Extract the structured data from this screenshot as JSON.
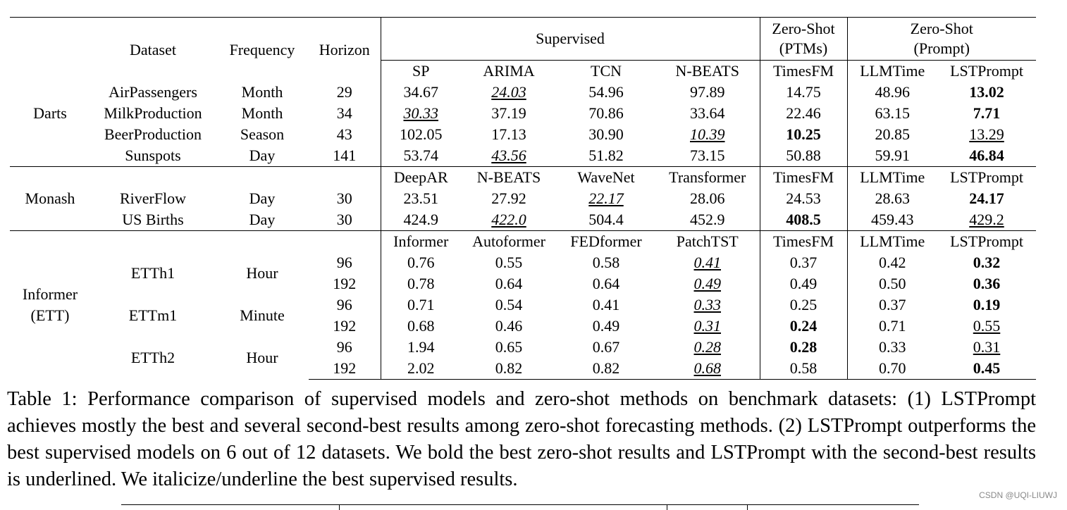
{
  "table": {
    "header": {
      "dataset": "Dataset",
      "frequency": "Frequency",
      "horizon": "Horizon",
      "supervised": "Supervised",
      "zs_ptm_l1": "Zero-Shot",
      "zs_ptm_l2": "(PTMs)",
      "zs_prompt_l1": "Zero-Shot",
      "zs_prompt_l2": "(Prompt)"
    },
    "sections": [
      {
        "group": [
          "Darts"
        ],
        "models": [
          "SP",
          "ARIMA",
          "TCN",
          "N-BEATS",
          "TimesFM",
          "LLMTime",
          "LSTPrompt"
        ],
        "rows": [
          {
            "dataset": "AirPassengers",
            "frequency": "Month",
            "horizon": "29",
            "values": [
              {
                "v": "34.67"
              },
              {
                "v": "24.03",
                "s": "iu"
              },
              {
                "v": "54.96"
              },
              {
                "v": "97.89"
              },
              {
                "v": "14.75"
              },
              {
                "v": "48.96"
              },
              {
                "v": "13.02",
                "s": "b"
              }
            ]
          },
          {
            "dataset": "MilkProduction",
            "frequency": "Month",
            "horizon": "34",
            "values": [
              {
                "v": "30.33",
                "s": "iu"
              },
              {
                "v": "37.19"
              },
              {
                "v": "70.86"
              },
              {
                "v": "33.64"
              },
              {
                "v": "22.46"
              },
              {
                "v": "63.15"
              },
              {
                "v": "7.71",
                "s": "b"
              }
            ]
          },
          {
            "dataset": "BeerProduction",
            "frequency": "Season",
            "horizon": "43",
            "values": [
              {
                "v": "102.05"
              },
              {
                "v": "17.13"
              },
              {
                "v": "30.90"
              },
              {
                "v": "10.39",
                "s": "iu"
              },
              {
                "v": "10.25",
                "s": "b"
              },
              {
                "v": "20.85"
              },
              {
                "v": "13.29",
                "s": "u"
              }
            ]
          },
          {
            "dataset": "Sunspots",
            "frequency": "Day",
            "horizon": "141",
            "values": [
              {
                "v": "53.74"
              },
              {
                "v": "43.56",
                "s": "iu"
              },
              {
                "v": "51.82"
              },
              {
                "v": "73.15"
              },
              {
                "v": "50.88"
              },
              {
                "v": "59.91"
              },
              {
                "v": "46.84",
                "s": "b"
              }
            ]
          }
        ]
      },
      {
        "group": [
          "Monash"
        ],
        "models": [
          "DeepAR",
          "N-BEATS",
          "WaveNet",
          "Transformer",
          "TimesFM",
          "LLMTime",
          "LSTPrompt"
        ],
        "rows": [
          {
            "dataset": "RiverFlow",
            "frequency": "Day",
            "horizon": "30",
            "values": [
              {
                "v": "23.51"
              },
              {
                "v": "27.92"
              },
              {
                "v": "22.17",
                "s": "iu"
              },
              {
                "v": "28.06"
              },
              {
                "v": "24.53"
              },
              {
                "v": "28.63"
              },
              {
                "v": "24.17",
                "s": "b"
              }
            ]
          },
          {
            "dataset": "US Births",
            "frequency": "Day",
            "horizon": "30",
            "values": [
              {
                "v": "424.9"
              },
              {
                "v": "422.0",
                "s": "iu"
              },
              {
                "v": "504.4"
              },
              {
                "v": "452.9"
              },
              {
                "v": "408.5",
                "s": "b"
              },
              {
                "v": "459.43"
              },
              {
                "v": "429.2",
                "s": "u"
              }
            ]
          }
        ]
      },
      {
        "group": [
          "Informer",
          "(ETT)"
        ],
        "models": [
          "Informer",
          "Autoformer",
          "FEDformer",
          "PatchTST",
          "TimesFM",
          "LLMTime",
          "LSTPrompt"
        ],
        "rows": [
          {
            "dataset": "ETTh1",
            "frequency": "Hour",
            "horizon": "96",
            "values": [
              {
                "v": "0.76"
              },
              {
                "v": "0.55"
              },
              {
                "v": "0.58"
              },
              {
                "v": "0.41",
                "s": "iu"
              },
              {
                "v": "0.37"
              },
              {
                "v": "0.42"
              },
              {
                "v": "0.32",
                "s": "b"
              }
            ]
          },
          {
            "dataset": "",
            "frequency": "",
            "horizon": "192",
            "values": [
              {
                "v": "0.78"
              },
              {
                "v": "0.64"
              },
              {
                "v": "0.64"
              },
              {
                "v": "0.49",
                "s": "iu"
              },
              {
                "v": "0.49"
              },
              {
                "v": "0.50"
              },
              {
                "v": "0.36",
                "s": "b"
              }
            ]
          },
          {
            "dataset": "ETTm1",
            "frequency": "Minute",
            "horizon": "96",
            "values": [
              {
                "v": "0.71"
              },
              {
                "v": "0.54"
              },
              {
                "v": "0.41"
              },
              {
                "v": "0.33",
                "s": "iu"
              },
              {
                "v": "0.25"
              },
              {
                "v": "0.37"
              },
              {
                "v": "0.19",
                "s": "b"
              }
            ]
          },
          {
            "dataset": "",
            "frequency": "",
            "horizon": "192",
            "values": [
              {
                "v": "0.68"
              },
              {
                "v": "0.46"
              },
              {
                "v": "0.49"
              },
              {
                "v": "0.31",
                "s": "iu"
              },
              {
                "v": "0.24",
                "s": "b"
              },
              {
                "v": "0.71"
              },
              {
                "v": "0.55",
                "s": "u"
              }
            ]
          },
          {
            "dataset": "ETTh2",
            "frequency": "Hour",
            "horizon": "96",
            "values": [
              {
                "v": "1.94"
              },
              {
                "v": "0.65"
              },
              {
                "v": "0.67"
              },
              {
                "v": "0.28",
                "s": "iu"
              },
              {
                "v": "0.28",
                "s": "b"
              },
              {
                "v": "0.33"
              },
              {
                "v": "0.31",
                "s": "u"
              }
            ]
          },
          {
            "dataset": "",
            "frequency": "",
            "horizon": "192",
            "values": [
              {
                "v": "2.02"
              },
              {
                "v": "0.82"
              },
              {
                "v": "0.82"
              },
              {
                "v": "0.68",
                "s": "iu"
              },
              {
                "v": "0.58"
              },
              {
                "v": "0.70"
              },
              {
                "v": "0.45",
                "s": "b"
              }
            ]
          }
        ]
      }
    ]
  },
  "caption": "Table 1: Performance comparison of supervised models and zero-shot methods on benchmark datasets: (1) LSTPrompt achieves mostly the best and several second-best results among zero-shot forecasting methods. (2) LSTPrompt outperforms the best supervised models on 6 out of 12 datasets. We bold the best zero-shot results and LSTPrompt with the second-best results is underlined. We italicize/underline the best supervised results.",
  "watermark": "CSDN @UQI-LIUWJ"
}
